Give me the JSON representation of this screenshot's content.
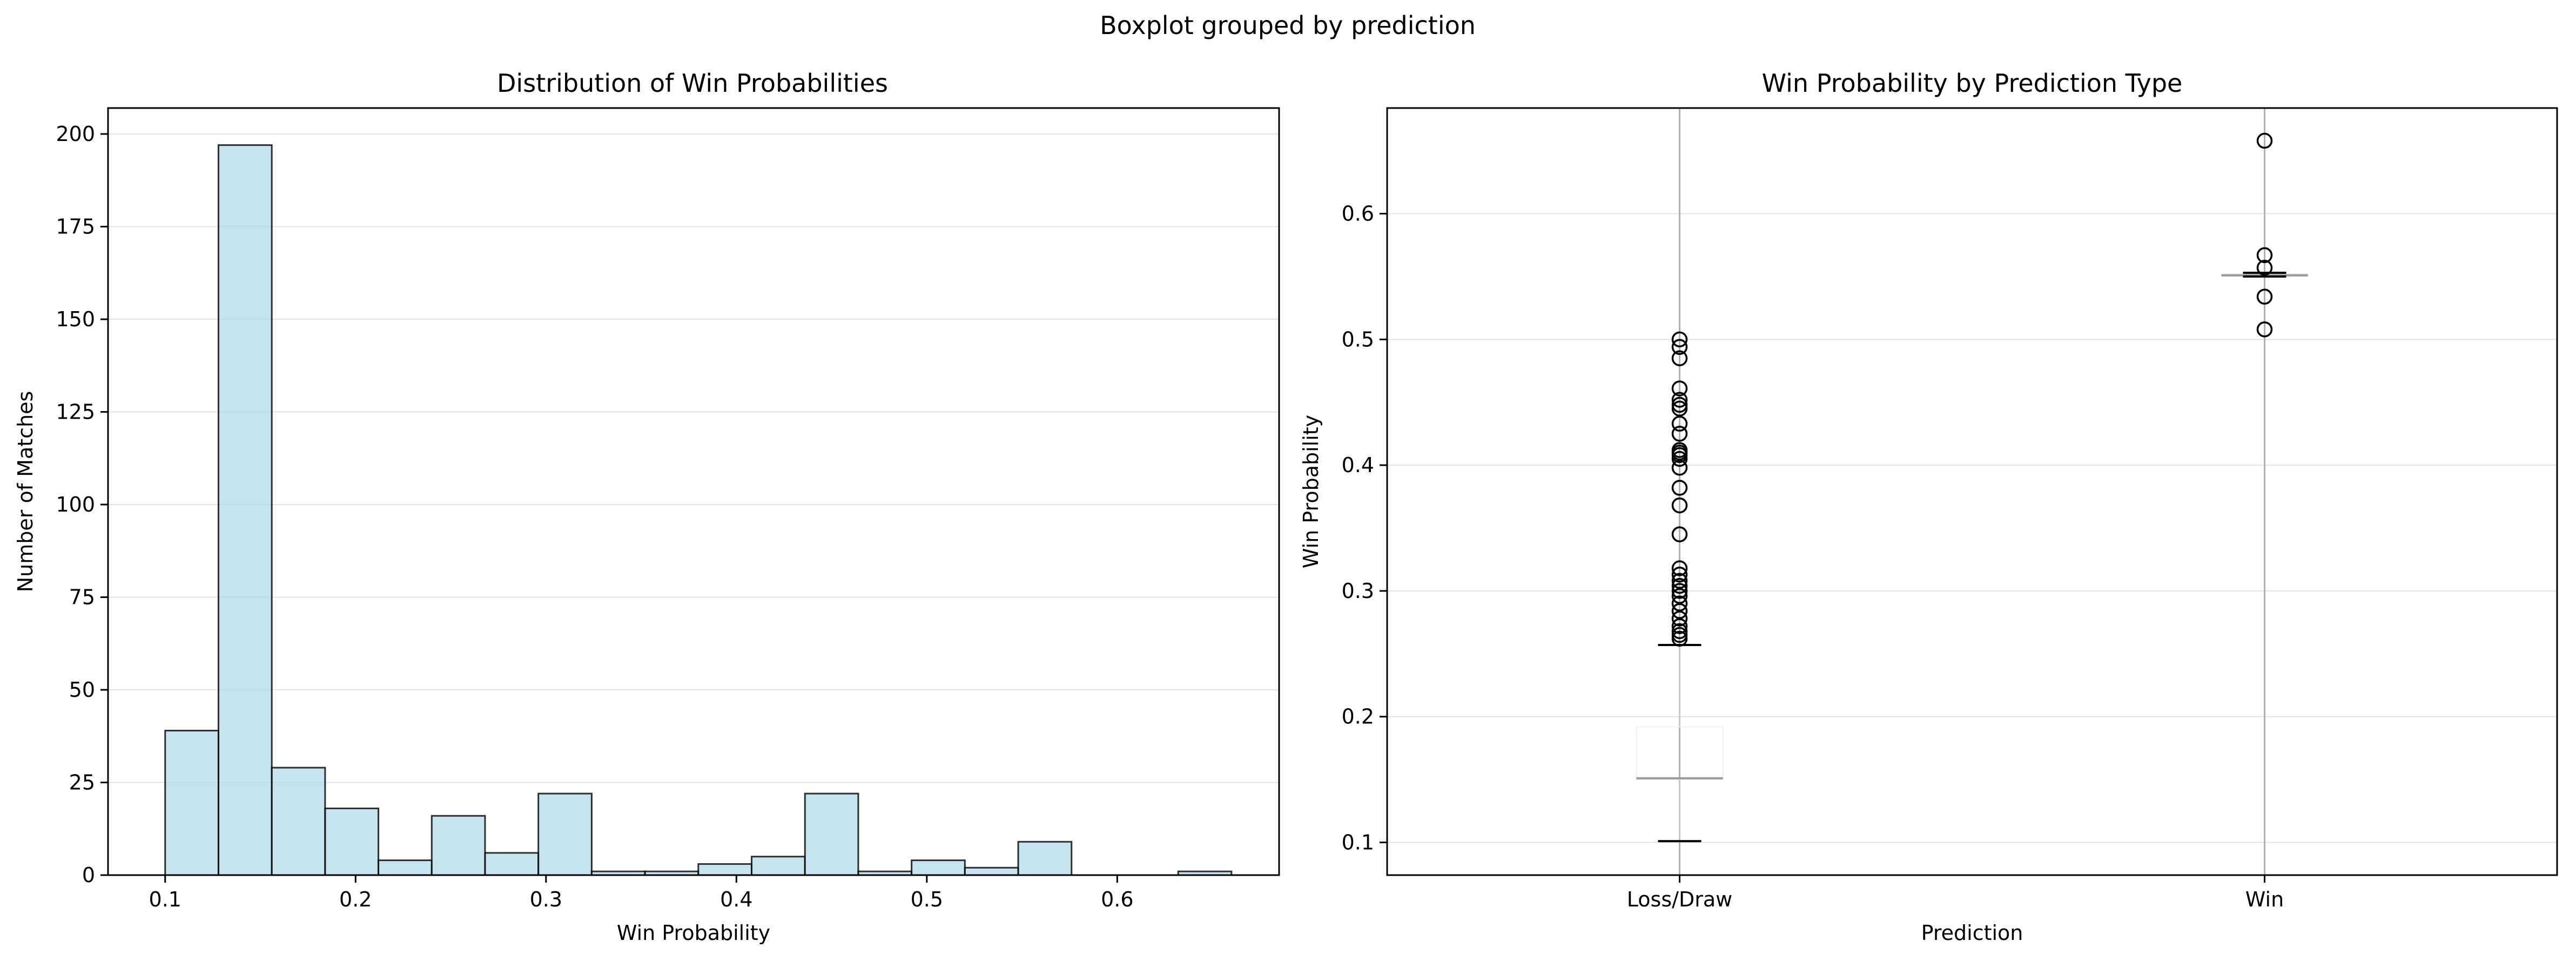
{
  "figure": {
    "suptitle": "Boxplot grouped by prediction"
  },
  "chart_data": [
    {
      "type": "bar",
      "title": "Distribution of Win Probabilities",
      "xlabel": "Win Probability",
      "ylabel": "Number of Matches",
      "xlim": [
        0.07,
        0.685
      ],
      "ylim": [
        0,
        207
      ],
      "xticks": [
        0.1,
        0.2,
        0.3,
        0.4,
        0.5,
        0.6
      ],
      "yticks": [
        0,
        25,
        50,
        75,
        100,
        125,
        150,
        175,
        200
      ],
      "grid": "y",
      "bar_color": "#add8e6",
      "bins": [
        {
          "x0": 0.1,
          "x1": 0.128,
          "count": 39
        },
        {
          "x0": 0.128,
          "x1": 0.156,
          "count": 197
        },
        {
          "x0": 0.156,
          "x1": 0.184,
          "count": 29
        },
        {
          "x0": 0.184,
          "x1": 0.212,
          "count": 18
        },
        {
          "x0": 0.212,
          "x1": 0.24,
          "count": 4
        },
        {
          "x0": 0.24,
          "x1": 0.268,
          "count": 16
        },
        {
          "x0": 0.268,
          "x1": 0.296,
          "count": 6
        },
        {
          "x0": 0.296,
          "x1": 0.324,
          "count": 22
        },
        {
          "x0": 0.324,
          "x1": 0.352,
          "count": 1
        },
        {
          "x0": 0.352,
          "x1": 0.38,
          "count": 1
        },
        {
          "x0": 0.38,
          "x1": 0.408,
          "count": 3
        },
        {
          "x0": 0.408,
          "x1": 0.436,
          "count": 5
        },
        {
          "x0": 0.436,
          "x1": 0.464,
          "count": 22
        },
        {
          "x0": 0.464,
          "x1": 0.492,
          "count": 1
        },
        {
          "x0": 0.492,
          "x1": 0.52,
          "count": 4
        },
        {
          "x0": 0.52,
          "x1": 0.548,
          "count": 2
        },
        {
          "x0": 0.548,
          "x1": 0.576,
          "count": 9
        },
        {
          "x0": 0.576,
          "x1": 0.604,
          "count": 0
        },
        {
          "x0": 0.604,
          "x1": 0.632,
          "count": 0
        },
        {
          "x0": 0.632,
          "x1": 0.66,
          "count": 1
        }
      ]
    },
    {
      "type": "box",
      "title": "Win Probability by Prediction Type",
      "xlabel": "Prediction",
      "ylabel": "Win Probability",
      "ylim": [
        0.074,
        0.684
      ],
      "yticks": [
        0.1,
        0.2,
        0.3,
        0.4,
        0.5,
        0.6
      ],
      "grid": "both",
      "categories": [
        "Loss/Draw",
        "Win"
      ],
      "boxes": [
        {
          "category": "Loss/Draw",
          "whisker_low": 0.101,
          "q1": 0.15,
          "median": 0.151,
          "q3": 0.192,
          "whisker_high": 0.257,
          "outliers": [
            0.262,
            0.265,
            0.268,
            0.272,
            0.278,
            0.284,
            0.29,
            0.296,
            0.3,
            0.304,
            0.308,
            0.313,
            0.318,
            0.345,
            0.368,
            0.382,
            0.398,
            0.405,
            0.408,
            0.41,
            0.412,
            0.425,
            0.433,
            0.445,
            0.448,
            0.452,
            0.461,
            0.485,
            0.494,
            0.5
          ]
        },
        {
          "category": "Win",
          "whisker_low": 0.55,
          "q1": 0.55,
          "median": 0.551,
          "q3": 0.552,
          "whisker_high": 0.553,
          "outliers": [
            0.508,
            0.534,
            0.557,
            0.567,
            0.658
          ]
        }
      ]
    }
  ]
}
